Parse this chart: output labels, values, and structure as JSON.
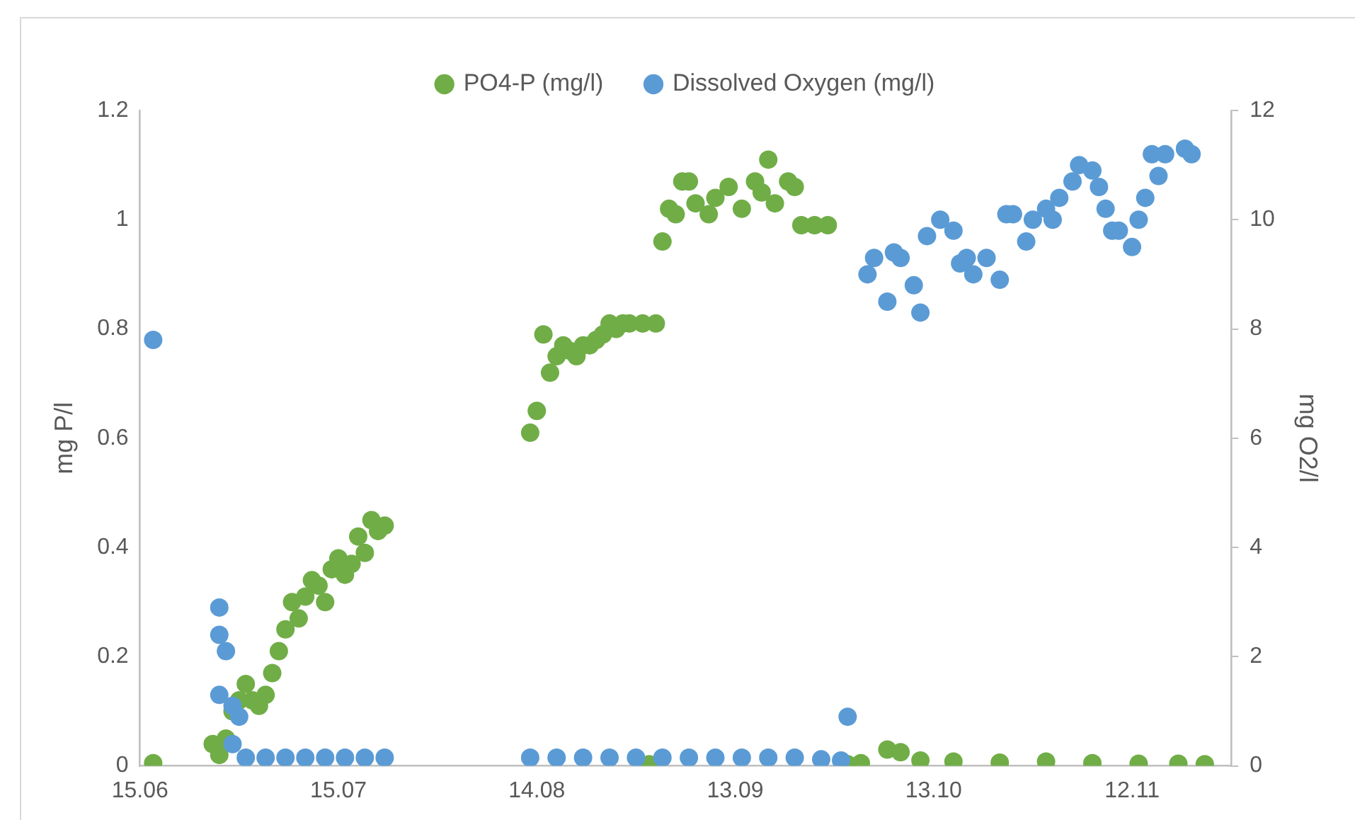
{
  "chart_data": {
    "type": "scatter",
    "ylabel": "mg P/l",
    "y2label": "mg O2/l",
    "legend": "top",
    "marker": "circle",
    "grid": false,
    "xlim": [
      "--06-15",
      "--11-27"
    ],
    "xticks": [
      {
        "value": "--06-15",
        "label": "15.06"
      },
      {
        "value": "--07-15",
        "label": "15.07"
      },
      {
        "value": "--08-14",
        "label": "14.08"
      },
      {
        "value": "--09-13",
        "label": "13.09"
      },
      {
        "value": "--10-13",
        "label": "13.10"
      },
      {
        "value": "--11-12",
        "label": "12.11"
      }
    ],
    "ylim": [
      0,
      1.2
    ],
    "yticks": [
      0,
      0.2,
      0.4,
      0.6,
      0.8,
      1,
      1.2
    ],
    "y2lim": [
      0,
      12
    ],
    "y2ticks": [
      0,
      2,
      4,
      6,
      8,
      10,
      12
    ],
    "series": [
      {
        "name": "PO4-P (mg/l)",
        "color": "#70ad47",
        "x": [
          "--06-17",
          "--06-26",
          "--06-27",
          "--06-28",
          "--06-29",
          "--06-30",
          "--07-01",
          "--07-02",
          "--07-03",
          "--07-04",
          "--07-05",
          "--07-06",
          "--07-07",
          "--07-08",
          "--07-09",
          "--07-10",
          "--07-11",
          "--07-12",
          "--07-13",
          "--07-14",
          "--07-15",
          "--07-16",
          "--07-17",
          "--07-18",
          "--07-19",
          "--07-20",
          "--07-21",
          "--07-22",
          "--08-13",
          "--08-14",
          "--08-15",
          "--08-16",
          "--08-17",
          "--08-18",
          "--08-19",
          "--08-20",
          "--08-21",
          "--08-22",
          "--08-23",
          "--08-24",
          "--08-25",
          "--08-26",
          "--08-27",
          "--08-28",
          "--08-30",
          "--09-01",
          "--08-31",
          "--09-02",
          "--09-03",
          "--09-04",
          "--09-05",
          "--09-06",
          "--09-07",
          "--09-09",
          "--09-10",
          "--09-12",
          "--09-14",
          "--09-16",
          "--09-17",
          "--09-18",
          "--09-19",
          "--09-21",
          "--09-22",
          "--09-23",
          "--09-25",
          "--09-27",
          "--09-30",
          "--10-02",
          "--10-06",
          "--10-08",
          "--10-11",
          "--10-16",
          "--10-23",
          "--10-30",
          "--11-06",
          "--11-13",
          "--11-19",
          "--11-23"
        ],
        "values": [
          0.005,
          0.04,
          0.02,
          0.05,
          0.1,
          0.12,
          0.15,
          0.12,
          0.11,
          0.13,
          0.17,
          0.21,
          0.25,
          0.3,
          0.27,
          0.31,
          0.34,
          0.33,
          0.3,
          0.36,
          0.38,
          0.35,
          0.37,
          0.42,
          0.39,
          0.45,
          0.43,
          0.44,
          0.61,
          0.65,
          0.79,
          0.72,
          0.75,
          0.77,
          0.76,
          0.75,
          0.77,
          0.77,
          0.78,
          0.79,
          0.81,
          0.8,
          0.81,
          0.81,
          0.81,
          0.81,
          0.003,
          0.96,
          1.02,
          1.01,
          1.07,
          1.07,
          1.03,
          1.01,
          1.04,
          1.06,
          1.02,
          1.07,
          1.05,
          1.11,
          1.03,
          1.07,
          1.06,
          0.99,
          0.99,
          0.99,
          0.003,
          0.005,
          0.03,
          0.025,
          0.01,
          0.008,
          0.006,
          0.008,
          0.005,
          0.004,
          0.004,
          0.003
        ]
      },
      {
        "name": "Dissolved Oxygen (mg/l)",
        "color": "#5b9bd5",
        "axis": "y2",
        "x": [
          "--06-17",
          "--06-27",
          "--06-27",
          "--06-28",
          "--06-27",
          "--06-29",
          "--06-30",
          "--06-29",
          "--07-01",
          "--07-04",
          "--07-07",
          "--07-10",
          "--07-13",
          "--07-16",
          "--07-19",
          "--07-22",
          "--08-13",
          "--08-17",
          "--08-21",
          "--08-25",
          "--08-29",
          "--09-02",
          "--09-06",
          "--09-10",
          "--09-14",
          "--09-18",
          "--09-22",
          "--09-26",
          "--09-29",
          "--09-30",
          "--10-03",
          "--10-04",
          "--10-06",
          "--10-07",
          "--10-08",
          "--10-10",
          "--10-11",
          "--10-12",
          "--10-14",
          "--10-16",
          "--10-17",
          "--10-18",
          "--10-19",
          "--10-21",
          "--10-23",
          "--10-24",
          "--10-25",
          "--10-27",
          "--10-28",
          "--10-30",
          "--10-31",
          "--11-01",
          "--11-03",
          "--11-04",
          "--11-06",
          "--11-07",
          "--11-08",
          "--11-09",
          "--11-10",
          "--11-12",
          "--11-13",
          "--11-14",
          "--11-15",
          "--11-16",
          "--11-17",
          "--11-20",
          "--11-21"
        ],
        "values": [
          7.8,
          2.9,
          2.4,
          2.1,
          1.3,
          1.1,
          0.9,
          0.4,
          0.15,
          0.15,
          0.15,
          0.15,
          0.15,
          0.15,
          0.15,
          0.15,
          0.15,
          0.15,
          0.15,
          0.15,
          0.15,
          0.15,
          0.15,
          0.15,
          0.15,
          0.15,
          0.15,
          0.12,
          0.1,
          0.9,
          9,
          9.3,
          8.5,
          9.4,
          9.3,
          8.8,
          8.3,
          9.7,
          10,
          9.8,
          9.2,
          9.3,
          9,
          9.3,
          8.9,
          10.1,
          10.1,
          9.6,
          10,
          10.2,
          10,
          10.4,
          10.7,
          11,
          10.9,
          10.6,
          10.2,
          9.8,
          9.8,
          9.5,
          10,
          10.4,
          11.2,
          10.8,
          11.2,
          11.3,
          11.2
        ]
      }
    ]
  }
}
